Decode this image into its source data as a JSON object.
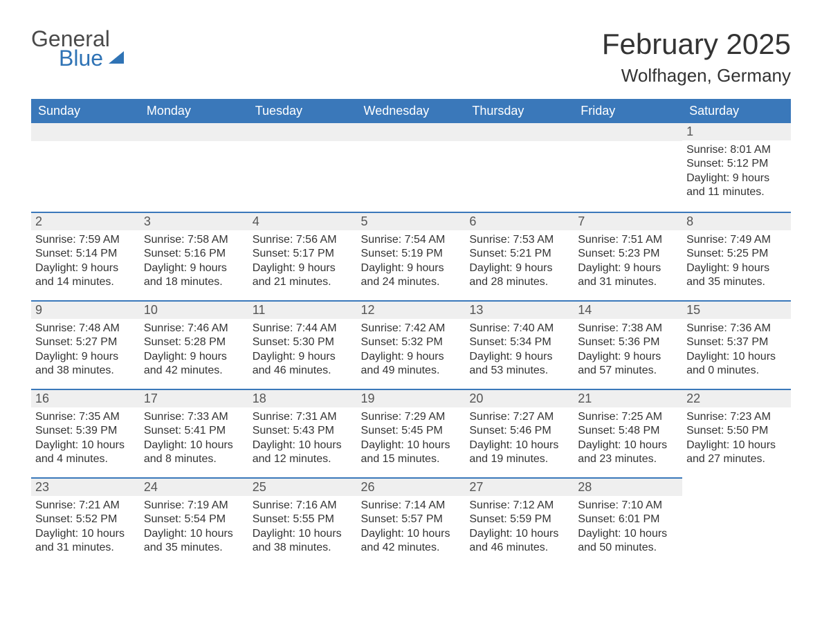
{
  "logo": {
    "word1": "General",
    "word2": "Blue"
  },
  "title": "February 2025",
  "location": "Wolfhagen, Germany",
  "colors": {
    "header_bg": "#3a78ba",
    "header_text": "#ffffff",
    "daybar_bg": "#efefef",
    "daybar_border": "#3a78ba",
    "page_bg": "#ffffff",
    "text": "#333333",
    "logo_blue": "#2f73b5",
    "logo_gray": "#4a4a4a"
  },
  "typography": {
    "title_fontsize": 42,
    "location_fontsize": 26,
    "header_fontsize": 18,
    "daynum_fontsize": 18,
    "body_fontsize": 16
  },
  "calendar": {
    "type": "table",
    "columns": [
      "Sunday",
      "Monday",
      "Tuesday",
      "Wednesday",
      "Thursday",
      "Friday",
      "Saturday"
    ],
    "weeks": [
      [
        null,
        null,
        null,
        null,
        null,
        null,
        {
          "day": "1",
          "sunrise": "Sunrise: 8:01 AM",
          "sunset": "Sunset: 5:12 PM",
          "daylight": "Daylight: 9 hours and 11 minutes."
        }
      ],
      [
        {
          "day": "2",
          "sunrise": "Sunrise: 7:59 AM",
          "sunset": "Sunset: 5:14 PM",
          "daylight": "Daylight: 9 hours and 14 minutes."
        },
        {
          "day": "3",
          "sunrise": "Sunrise: 7:58 AM",
          "sunset": "Sunset: 5:16 PM",
          "daylight": "Daylight: 9 hours and 18 minutes."
        },
        {
          "day": "4",
          "sunrise": "Sunrise: 7:56 AM",
          "sunset": "Sunset: 5:17 PM",
          "daylight": "Daylight: 9 hours and 21 minutes."
        },
        {
          "day": "5",
          "sunrise": "Sunrise: 7:54 AM",
          "sunset": "Sunset: 5:19 PM",
          "daylight": "Daylight: 9 hours and 24 minutes."
        },
        {
          "day": "6",
          "sunrise": "Sunrise: 7:53 AM",
          "sunset": "Sunset: 5:21 PM",
          "daylight": "Daylight: 9 hours and 28 minutes."
        },
        {
          "day": "7",
          "sunrise": "Sunrise: 7:51 AM",
          "sunset": "Sunset: 5:23 PM",
          "daylight": "Daylight: 9 hours and 31 minutes."
        },
        {
          "day": "8",
          "sunrise": "Sunrise: 7:49 AM",
          "sunset": "Sunset: 5:25 PM",
          "daylight": "Daylight: 9 hours and 35 minutes."
        }
      ],
      [
        {
          "day": "9",
          "sunrise": "Sunrise: 7:48 AM",
          "sunset": "Sunset: 5:27 PM",
          "daylight": "Daylight: 9 hours and 38 minutes."
        },
        {
          "day": "10",
          "sunrise": "Sunrise: 7:46 AM",
          "sunset": "Sunset: 5:28 PM",
          "daylight": "Daylight: 9 hours and 42 minutes."
        },
        {
          "day": "11",
          "sunrise": "Sunrise: 7:44 AM",
          "sunset": "Sunset: 5:30 PM",
          "daylight": "Daylight: 9 hours and 46 minutes."
        },
        {
          "day": "12",
          "sunrise": "Sunrise: 7:42 AM",
          "sunset": "Sunset: 5:32 PM",
          "daylight": "Daylight: 9 hours and 49 minutes."
        },
        {
          "day": "13",
          "sunrise": "Sunrise: 7:40 AM",
          "sunset": "Sunset: 5:34 PM",
          "daylight": "Daylight: 9 hours and 53 minutes."
        },
        {
          "day": "14",
          "sunrise": "Sunrise: 7:38 AM",
          "sunset": "Sunset: 5:36 PM",
          "daylight": "Daylight: 9 hours and 57 minutes."
        },
        {
          "day": "15",
          "sunrise": "Sunrise: 7:36 AM",
          "sunset": "Sunset: 5:37 PM",
          "daylight": "Daylight: 10 hours and 0 minutes."
        }
      ],
      [
        {
          "day": "16",
          "sunrise": "Sunrise: 7:35 AM",
          "sunset": "Sunset: 5:39 PM",
          "daylight": "Daylight: 10 hours and 4 minutes."
        },
        {
          "day": "17",
          "sunrise": "Sunrise: 7:33 AM",
          "sunset": "Sunset: 5:41 PM",
          "daylight": "Daylight: 10 hours and 8 minutes."
        },
        {
          "day": "18",
          "sunrise": "Sunrise: 7:31 AM",
          "sunset": "Sunset: 5:43 PM",
          "daylight": "Daylight: 10 hours and 12 minutes."
        },
        {
          "day": "19",
          "sunrise": "Sunrise: 7:29 AM",
          "sunset": "Sunset: 5:45 PM",
          "daylight": "Daylight: 10 hours and 15 minutes."
        },
        {
          "day": "20",
          "sunrise": "Sunrise: 7:27 AM",
          "sunset": "Sunset: 5:46 PM",
          "daylight": "Daylight: 10 hours and 19 minutes."
        },
        {
          "day": "21",
          "sunrise": "Sunrise: 7:25 AM",
          "sunset": "Sunset: 5:48 PM",
          "daylight": "Daylight: 10 hours and 23 minutes."
        },
        {
          "day": "22",
          "sunrise": "Sunrise: 7:23 AM",
          "sunset": "Sunset: 5:50 PM",
          "daylight": "Daylight: 10 hours and 27 minutes."
        }
      ],
      [
        {
          "day": "23",
          "sunrise": "Sunrise: 7:21 AM",
          "sunset": "Sunset: 5:52 PM",
          "daylight": "Daylight: 10 hours and 31 minutes."
        },
        {
          "day": "24",
          "sunrise": "Sunrise: 7:19 AM",
          "sunset": "Sunset: 5:54 PM",
          "daylight": "Daylight: 10 hours and 35 minutes."
        },
        {
          "day": "25",
          "sunrise": "Sunrise: 7:16 AM",
          "sunset": "Sunset: 5:55 PM",
          "daylight": "Daylight: 10 hours and 38 minutes."
        },
        {
          "day": "26",
          "sunrise": "Sunrise: 7:14 AM",
          "sunset": "Sunset: 5:57 PM",
          "daylight": "Daylight: 10 hours and 42 minutes."
        },
        {
          "day": "27",
          "sunrise": "Sunrise: 7:12 AM",
          "sunset": "Sunset: 5:59 PM",
          "daylight": "Daylight: 10 hours and 46 minutes."
        },
        {
          "day": "28",
          "sunrise": "Sunrise: 7:10 AM",
          "sunset": "Sunset: 6:01 PM",
          "daylight": "Daylight: 10 hours and 50 minutes."
        },
        null
      ]
    ]
  }
}
